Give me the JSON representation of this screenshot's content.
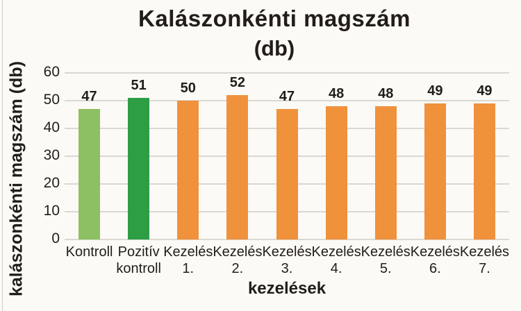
{
  "chart_data": {
    "type": "bar",
    "title": "Kalászonkénti magszám",
    "subtitle": "(db)",
    "xlabel": "kezelések",
    "ylabel": "kalászonkénti magszám (db)",
    "categories": [
      "Kontroll",
      "Pozitív kontroll",
      "Kezelés 1.",
      "Kezelés 2.",
      "Kezelés 3.",
      "Kezelés 4.",
      "Kezelés 5.",
      "Kezelés 6.",
      "Kezelés 7."
    ],
    "values": [
      47,
      51,
      50,
      52,
      47,
      48,
      48,
      49,
      49
    ],
    "bar_colors": [
      "#8DC063",
      "#2E9E45",
      "#F0913C",
      "#F0913C",
      "#F0913C",
      "#F0913C",
      "#F0913C",
      "#F0913C",
      "#F0913C"
    ],
    "ylim": [
      0,
      60
    ],
    "yticks": [
      0,
      10,
      20,
      30,
      40,
      50,
      60
    ],
    "grid": true,
    "legend": false
  },
  "colors": {
    "background": "#FCFAF6",
    "text": "#221D1A",
    "gridline": "#DBD8D2",
    "control_green": "#8DC063",
    "positive_control_green": "#2E9E45",
    "treatment_orange": "#F0913C"
  }
}
